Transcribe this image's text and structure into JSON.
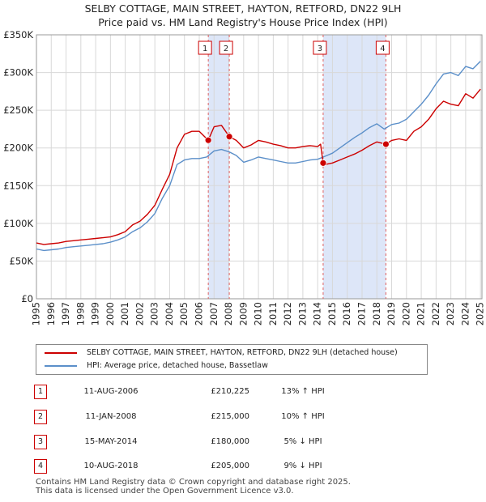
{
  "title_line1": "SELBY COTTAGE, MAIN STREET, HAYTON, RETFORD, DN22 9LH",
  "title_line2": "Price paid vs. HM Land Registry's House Price Index (HPI)",
  "chart_data": {
    "type": "line",
    "ylim": [
      0,
      350000
    ],
    "xlim": [
      1995.0,
      2025.1
    ],
    "y_ticks": [
      0,
      50000,
      100000,
      150000,
      200000,
      250000,
      300000,
      350000
    ],
    "y_tick_labels": [
      "£0",
      "£50K",
      "£100K",
      "£150K",
      "£200K",
      "£250K",
      "£300K",
      "£350K"
    ],
    "x_ticks": [
      1995,
      1996,
      1997,
      1998,
      1999,
      2000,
      2001,
      2002,
      2003,
      2004,
      2005,
      2006,
      2007,
      2008,
      2009,
      2010,
      2011,
      2012,
      2013,
      2014,
      2015,
      2016,
      2017,
      2018,
      2019,
      2020,
      2021,
      2022,
      2023,
      2024,
      2025
    ],
    "grid": true,
    "colors": {
      "property": "#cc0000",
      "hpi": "#5b8fc9",
      "shade": "#dde6f8",
      "vline": "#e06060"
    },
    "shaded_ranges": [
      [
        2006.61,
        2008.03
      ],
      [
        2014.37,
        2018.61
      ]
    ],
    "series": [
      {
        "name": "SELBY COTTAGE, MAIN STREET, HAYTON, RETFORD, DN22 9LH (detached house)",
        "color": "#cc0000",
        "x": [
          1995.0,
          1995.5,
          1996.0,
          1996.5,
          1997.0,
          1997.5,
          1998.0,
          1998.5,
          1999.0,
          1999.5,
          2000.0,
          2000.5,
          2001.0,
          2001.5,
          2002.0,
          2002.5,
          2003.0,
          2003.5,
          2004.0,
          2004.5,
          2005.0,
          2005.5,
          2006.0,
          2006.61,
          2007.0,
          2007.5,
          2008.03,
          2008.5,
          2009.0,
          2009.5,
          2010.0,
          2010.5,
          2011.0,
          2011.5,
          2012.0,
          2012.5,
          2013.0,
          2013.5,
          2014.0,
          2014.2,
          2014.37,
          2014.5,
          2015.0,
          2015.5,
          2016.0,
          2016.5,
          2017.0,
          2017.5,
          2018.0,
          2018.61,
          2019.0,
          2019.5,
          2020.0,
          2020.5,
          2021.0,
          2021.5,
          2022.0,
          2022.5,
          2023.0,
          2023.5,
          2024.0,
          2024.5,
          2025.0
        ],
        "values": [
          74000,
          72000,
          73000,
          74000,
          76000,
          77000,
          78000,
          79000,
          80000,
          81000,
          82000,
          85000,
          89000,
          98000,
          103000,
          112000,
          124000,
          145000,
          165000,
          200000,
          218000,
          222000,
          222000,
          210225,
          228000,
          230000,
          215000,
          210000,
          200000,
          204000,
          210000,
          208000,
          205000,
          203000,
          200000,
          200000,
          202000,
          203000,
          202000,
          205000,
          180000,
          178000,
          180000,
          184000,
          188000,
          192000,
          197000,
          203000,
          208000,
          205000,
          210000,
          212000,
          210000,
          222000,
          228000,
          238000,
          252000,
          262000,
          258000,
          256000,
          272000,
          266000,
          278000
        ]
      },
      {
        "name": "HPI: Average price, detached house, Bassetlaw",
        "color": "#5b8fc9",
        "x": [
          1995.0,
          1995.5,
          1996.0,
          1996.5,
          1997.0,
          1997.5,
          1998.0,
          1998.5,
          1999.0,
          1999.5,
          2000.0,
          2000.5,
          2001.0,
          2001.5,
          2002.0,
          2002.5,
          2003.0,
          2003.5,
          2004.0,
          2004.5,
          2005.0,
          2005.5,
          2006.0,
          2006.5,
          2007.0,
          2007.5,
          2008.0,
          2008.5,
          2009.0,
          2009.5,
          2010.0,
          2010.5,
          2011.0,
          2011.5,
          2012.0,
          2012.5,
          2013.0,
          2013.5,
          2014.0,
          2014.5,
          2015.0,
          2015.5,
          2016.0,
          2016.5,
          2017.0,
          2017.5,
          2018.0,
          2018.5,
          2019.0,
          2019.5,
          2020.0,
          2020.5,
          2021.0,
          2021.5,
          2022.0,
          2022.5,
          2023.0,
          2023.5,
          2024.0,
          2024.5,
          2025.0
        ],
        "values": [
          66000,
          64000,
          65000,
          66000,
          68000,
          69000,
          70000,
          71000,
          72000,
          73000,
          75000,
          78000,
          82000,
          89000,
          94000,
          102000,
          113000,
          133000,
          150000,
          178000,
          184000,
          186000,
          186000,
          188000,
          196000,
          198000,
          195000,
          190000,
          181000,
          184000,
          188000,
          186000,
          184000,
          182000,
          180000,
          180000,
          182000,
          184000,
          185000,
          189000,
          193000,
          200000,
          207000,
          214000,
          220000,
          227000,
          232000,
          225000,
          231000,
          233000,
          238000,
          248000,
          258000,
          270000,
          285000,
          298000,
          300000,
          296000,
          308000,
          305000,
          315000
        ]
      }
    ],
    "sales": [
      {
        "label": "1",
        "x": 2006.61,
        "value": 210225
      },
      {
        "label": "2",
        "x": 2008.03,
        "value": 215000
      },
      {
        "label": "3",
        "x": 2014.37,
        "value": 180000
      },
      {
        "label": "4",
        "x": 2018.61,
        "value": 205000
      }
    ]
  },
  "legend": {
    "property_label": "SELBY COTTAGE, MAIN STREET, HAYTON, RETFORD, DN22 9LH (detached house)",
    "hpi_label": "HPI: Average price, detached house, Bassetlaw"
  },
  "sales_table": [
    {
      "num": "1",
      "date": "11-AUG-2006",
      "price": "£210,225",
      "hpi": "13% ↑ HPI"
    },
    {
      "num": "2",
      "date": "11-JAN-2008",
      "price": "£215,000",
      "hpi": "10% ↑ HPI"
    },
    {
      "num": "3",
      "date": "15-MAY-2014",
      "price": "£180,000",
      "hpi": "5% ↓ HPI"
    },
    {
      "num": "4",
      "date": "10-AUG-2018",
      "price": "£205,000",
      "hpi": "9% ↓ HPI"
    }
  ],
  "footer_line1": "Contains HM Land Registry data © Crown copyright and database right 2025.",
  "footer_line2": "This data is licensed under the Open Government Licence v3.0."
}
